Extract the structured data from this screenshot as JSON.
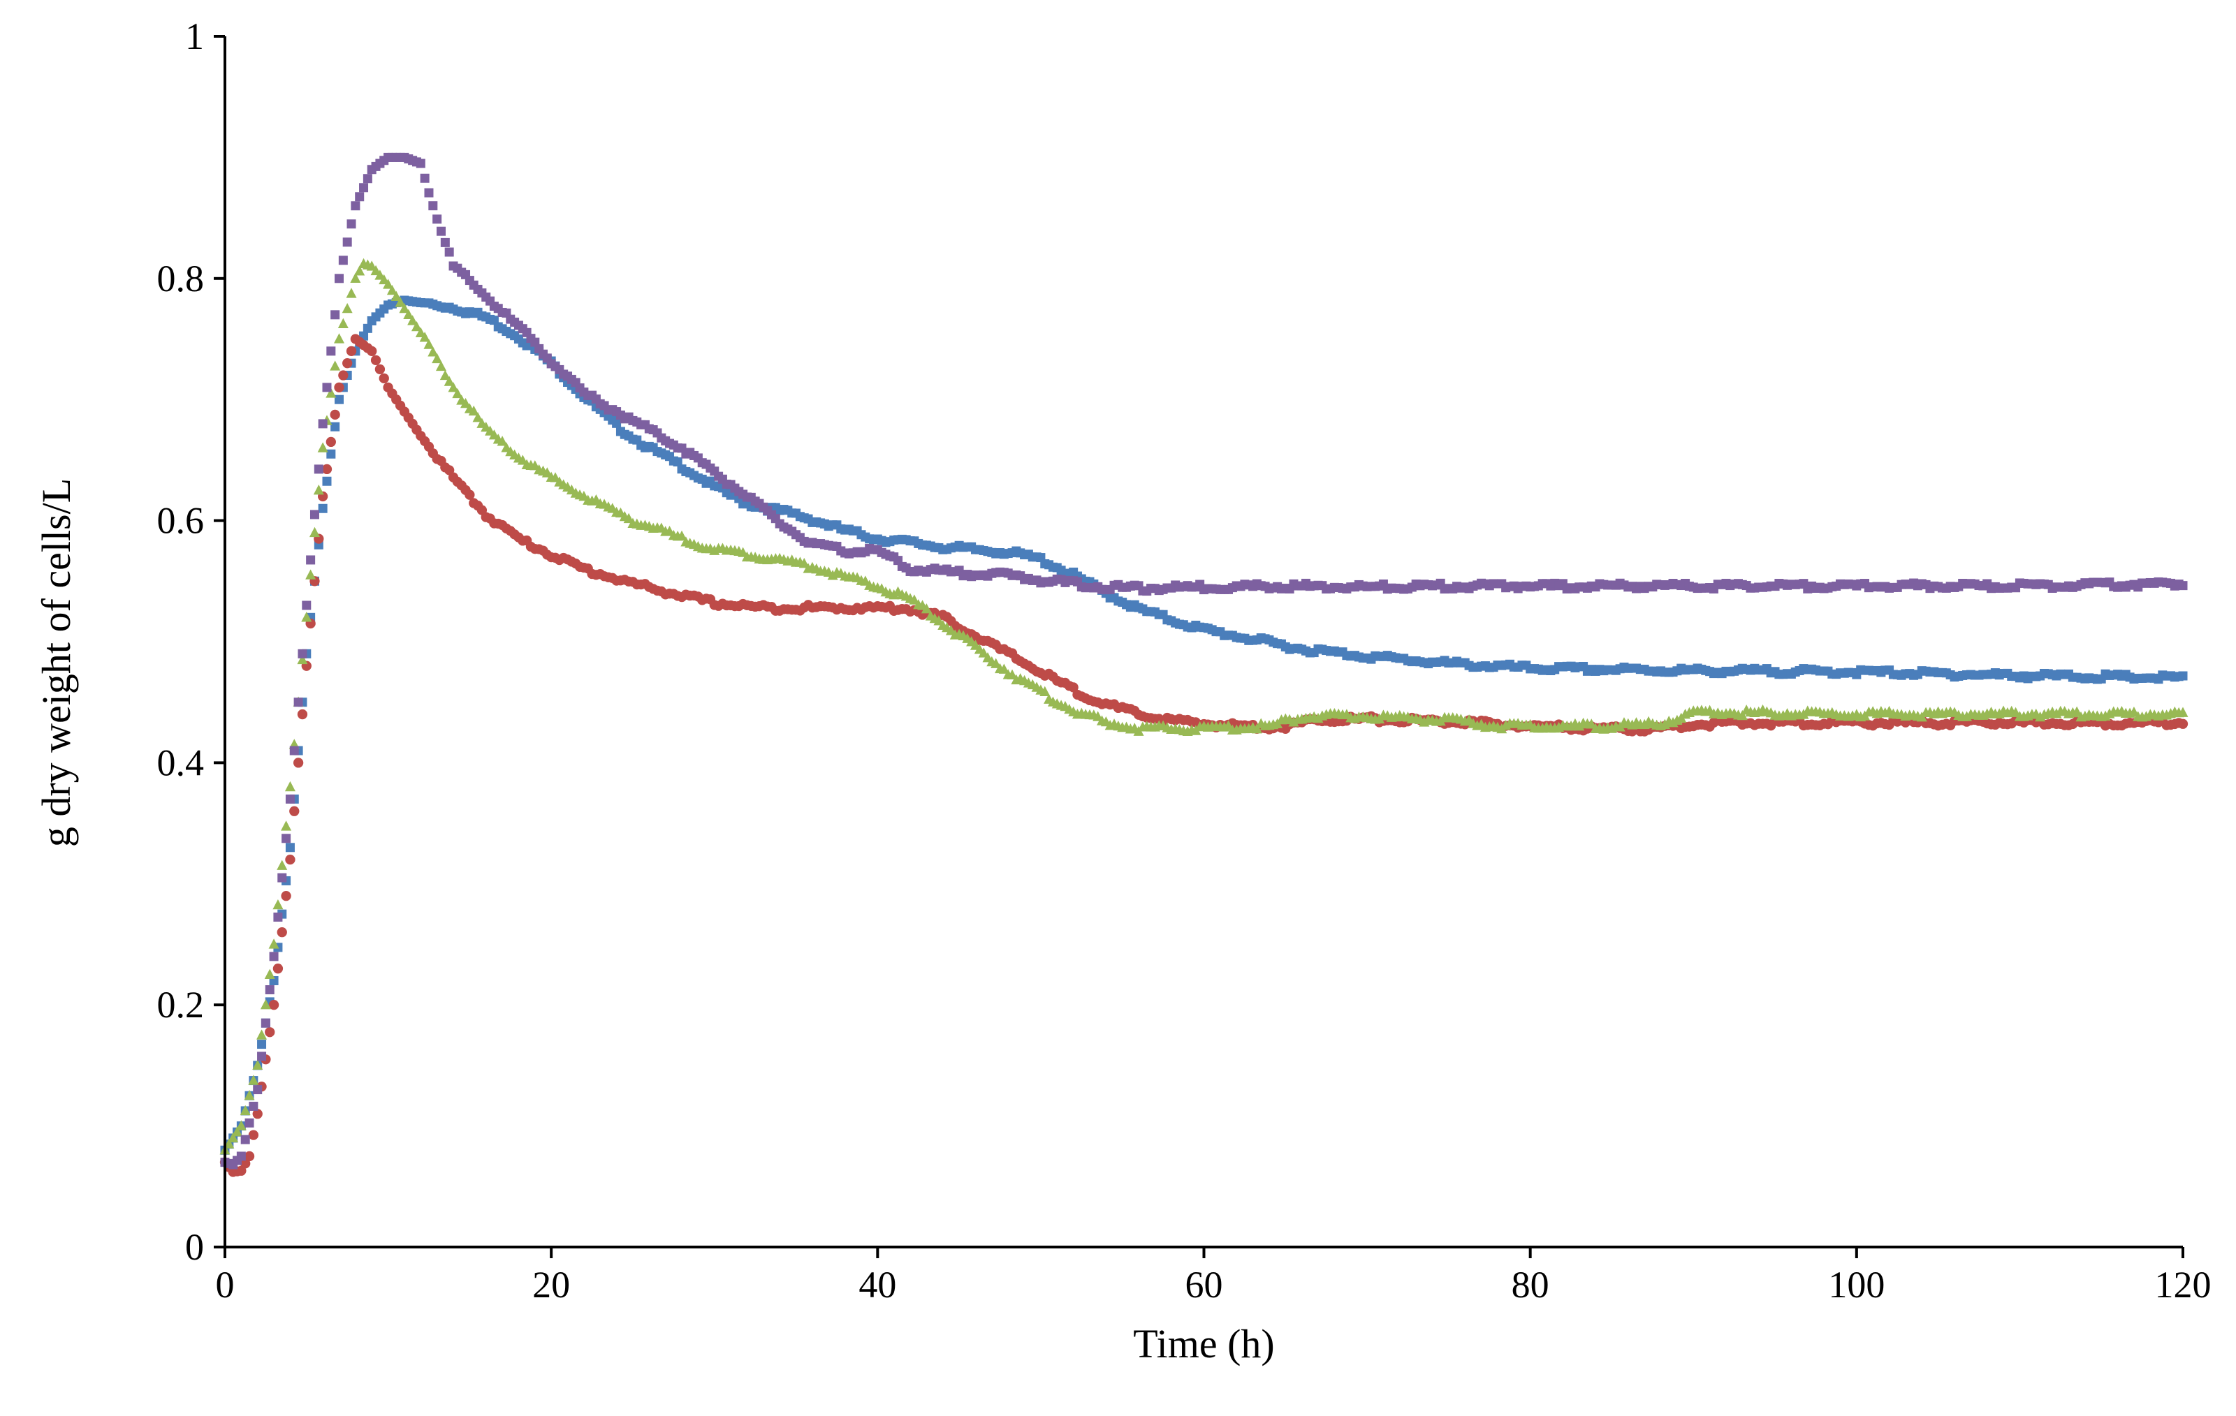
{
  "chart_data": {
    "type": "scatter",
    "title": "",
    "xlabel": "Time (h)",
    "ylabel": "g dry weight of cells/L",
    "xlim": [
      0,
      120
    ],
    "ylim": [
      0,
      1
    ],
    "x_ticks": [
      0,
      20,
      40,
      60,
      80,
      100,
      120
    ],
    "y_ticks": [
      0,
      0.2,
      0.4,
      0.6,
      0.8,
      1
    ],
    "x_tick_labels": [
      "0",
      "20",
      "40",
      "60",
      "80",
      "100",
      "120"
    ],
    "y_tick_labels": [
      "0",
      "0.2",
      "0.4",
      "0.6",
      "0.8",
      "1"
    ],
    "grid": false,
    "legend": "none",
    "series": [
      {
        "name": "blue",
        "color": "#4a7ebb",
        "marker": "square",
        "points": [
          [
            0,
            0.08
          ],
          [
            1,
            0.1
          ],
          [
            2,
            0.15
          ],
          [
            3,
            0.22
          ],
          [
            4,
            0.33
          ],
          [
            5,
            0.49
          ],
          [
            6,
            0.61
          ],
          [
            7,
            0.7
          ],
          [
            8,
            0.74
          ],
          [
            9,
            0.765
          ],
          [
            10,
            0.778
          ],
          [
            11,
            0.782
          ],
          [
            12,
            0.78
          ],
          [
            14,
            0.776
          ],
          [
            16,
            0.768
          ],
          [
            18,
            0.752
          ],
          [
            20,
            0.73
          ],
          [
            22,
            0.703
          ],
          [
            24,
            0.678
          ],
          [
            26,
            0.66
          ],
          [
            28,
            0.645
          ],
          [
            30,
            0.628
          ],
          [
            32,
            0.614
          ],
          [
            35,
            0.605
          ],
          [
            38,
            0.592
          ],
          [
            40,
            0.585
          ],
          [
            42,
            0.582
          ],
          [
            44,
            0.578
          ],
          [
            46,
            0.576
          ],
          [
            48,
            0.574
          ],
          [
            50,
            0.568
          ],
          [
            52,
            0.555
          ],
          [
            54,
            0.54
          ],
          [
            56,
            0.527
          ],
          [
            58,
            0.518
          ],
          [
            60,
            0.51
          ],
          [
            63,
            0.502
          ],
          [
            66,
            0.494
          ],
          [
            70,
            0.488
          ],
          [
            75,
            0.482
          ],
          [
            80,
            0.478
          ],
          [
            90,
            0.476
          ],
          [
            100,
            0.475
          ],
          [
            110,
            0.472
          ],
          [
            120,
            0.47
          ]
        ]
      },
      {
        "name": "red",
        "color": "#be4b48",
        "marker": "circle",
        "points": [
          [
            0,
            0.07
          ],
          [
            0.5,
            0.062
          ],
          [
            1,
            0.063
          ],
          [
            1.5,
            0.075
          ],
          [
            2,
            0.11
          ],
          [
            3,
            0.2
          ],
          [
            4,
            0.32
          ],
          [
            5,
            0.48
          ],
          [
            6,
            0.62
          ],
          [
            7,
            0.71
          ],
          [
            8,
            0.75
          ],
          [
            9,
            0.74
          ],
          [
            10,
            0.71
          ],
          [
            12,
            0.67
          ],
          [
            14,
            0.635
          ],
          [
            16,
            0.605
          ],
          [
            18,
            0.585
          ],
          [
            20,
            0.572
          ],
          [
            22,
            0.56
          ],
          [
            25,
            0.548
          ],
          [
            28,
            0.538
          ],
          [
            30,
            0.532
          ],
          [
            33,
            0.528
          ],
          [
            36,
            0.528
          ],
          [
            40,
            0.528
          ],
          [
            42,
            0.527
          ],
          [
            44,
            0.52
          ],
          [
            46,
            0.505
          ],
          [
            48,
            0.49
          ],
          [
            50,
            0.475
          ],
          [
            52,
            0.46
          ],
          [
            54,
            0.448
          ],
          [
            56,
            0.44
          ],
          [
            58,
            0.435
          ],
          [
            60,
            0.432
          ],
          [
            63,
            0.43
          ],
          [
            65,
            0.43
          ],
          [
            67,
            0.436
          ],
          [
            70,
            0.436
          ],
          [
            75,
            0.434
          ],
          [
            80,
            0.43
          ],
          [
            85,
            0.428
          ],
          [
            88,
            0.428
          ],
          [
            90,
            0.432
          ],
          [
            95,
            0.433
          ],
          [
            100,
            0.433
          ],
          [
            110,
            0.433
          ],
          [
            120,
            0.433
          ]
        ]
      },
      {
        "name": "green",
        "color": "#98b954",
        "marker": "triangle",
        "points": [
          [
            0,
            0.08
          ],
          [
            1,
            0.1
          ],
          [
            2,
            0.15
          ],
          [
            3,
            0.25
          ],
          [
            4,
            0.38
          ],
          [
            5,
            0.52
          ],
          [
            6,
            0.66
          ],
          [
            7,
            0.75
          ],
          [
            8,
            0.8
          ],
          [
            8.5,
            0.812
          ],
          [
            9,
            0.81
          ],
          [
            10,
            0.795
          ],
          [
            12,
            0.755
          ],
          [
            14,
            0.71
          ],
          [
            16,
            0.675
          ],
          [
            18,
            0.652
          ],
          [
            20,
            0.635
          ],
          [
            22,
            0.62
          ],
          [
            25,
            0.6
          ],
          [
            28,
            0.585
          ],
          [
            30,
            0.576
          ],
          [
            33,
            0.57
          ],
          [
            36,
            0.562
          ],
          [
            40,
            0.545
          ],
          [
            42,
            0.535
          ],
          [
            44,
            0.515
          ],
          [
            46,
            0.495
          ],
          [
            48,
            0.475
          ],
          [
            50,
            0.458
          ],
          [
            52,
            0.443
          ],
          [
            54,
            0.433
          ],
          [
            56,
            0.428
          ],
          [
            58,
            0.428
          ],
          [
            60,
            0.428
          ],
          [
            64,
            0.43
          ],
          [
            66,
            0.438
          ],
          [
            70,
            0.438
          ],
          [
            75,
            0.435
          ],
          [
            78,
            0.43
          ],
          [
            80,
            0.43
          ],
          [
            85,
            0.43
          ],
          [
            88,
            0.432
          ],
          [
            90,
            0.441
          ],
          [
            95,
            0.441
          ],
          [
            100,
            0.44
          ],
          [
            110,
            0.44
          ],
          [
            120,
            0.44
          ]
        ]
      },
      {
        "name": "purple",
        "color": "#7d60a0",
        "marker": "square",
        "points": [
          [
            0,
            0.07
          ],
          [
            0.5,
            0.068
          ],
          [
            1,
            0.075
          ],
          [
            2,
            0.13
          ],
          [
            3,
            0.24
          ],
          [
            4,
            0.37
          ],
          [
            5,
            0.53
          ],
          [
            6,
            0.68
          ],
          [
            7,
            0.8
          ],
          [
            8,
            0.86
          ],
          [
            9,
            0.89
          ],
          [
            10,
            0.9
          ],
          [
            11,
            0.9
          ],
          [
            12,
            0.895
          ],
          [
            13,
            0.85
          ],
          [
            14,
            0.81
          ],
          [
            16,
            0.785
          ],
          [
            18,
            0.76
          ],
          [
            20,
            0.732
          ],
          [
            22,
            0.705
          ],
          [
            24,
            0.69
          ],
          [
            26,
            0.675
          ],
          [
            28,
            0.66
          ],
          [
            30,
            0.64
          ],
          [
            32,
            0.62
          ],
          [
            34,
            0.598
          ],
          [
            36,
            0.58
          ],
          [
            38,
            0.575
          ],
          [
            40,
            0.575
          ],
          [
            42,
            0.56
          ],
          [
            44,
            0.558
          ],
          [
            46,
            0.556
          ],
          [
            48,
            0.555
          ],
          [
            50,
            0.551
          ],
          [
            52,
            0.548
          ],
          [
            54,
            0.545
          ],
          [
            56,
            0.544
          ],
          [
            60,
            0.545
          ],
          [
            65,
            0.546
          ],
          [
            70,
            0.545
          ],
          [
            75,
            0.546
          ],
          [
            80,
            0.546
          ],
          [
            85,
            0.546
          ],
          [
            90,
            0.546
          ],
          [
            100,
            0.546
          ],
          [
            110,
            0.546
          ],
          [
            120,
            0.548
          ]
        ]
      }
    ]
  }
}
